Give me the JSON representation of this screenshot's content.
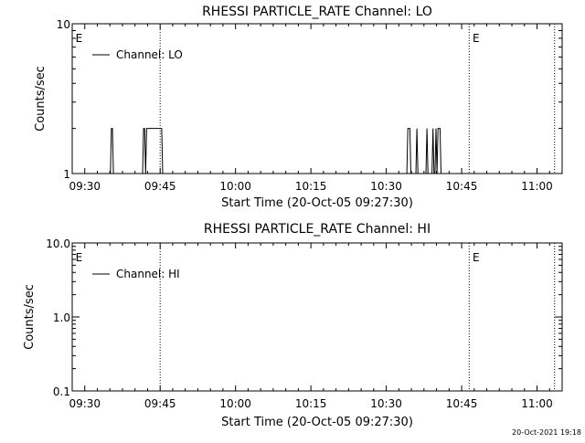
{
  "footer_timestamp": "20-Oct-2021 19:18",
  "chart_data": [
    {
      "type": "line",
      "title": "RHESSI PARTICLE_RATE Channel: LO",
      "xlabel": "Start Time (20-Oct-05 09:27:30)",
      "ylabel": "Counts/sec",
      "y_scale": "log",
      "ylim": [
        1,
        10
      ],
      "y_ticks": [
        "1",
        "10"
      ],
      "x_range_minutes": [
        0,
        97.5
      ],
      "x_tick_labels": [
        "09:30",
        "09:45",
        "10:00",
        "10:15",
        "10:30",
        "10:45",
        "11:00"
      ],
      "x_tick_minutes": [
        2.5,
        17.5,
        32.5,
        47.5,
        62.5,
        77.5,
        92.5
      ],
      "dotted_lines_minutes": [
        17.5,
        79.0,
        96.0
      ],
      "event_markers": [
        {
          "label": "E",
          "minute": 0.3
        },
        {
          "label": "E",
          "minute": 79.3
        }
      ],
      "grid": false,
      "legend_position": "top-left",
      "series": [
        {
          "name": "Channel: LO",
          "x": [
            0,
            7.6,
            7.8,
            8.0,
            8.2,
            14.0,
            14.2,
            14.4,
            14.6,
            14.8,
            15.6,
            15.8,
            17.8,
            18.0,
            66.6,
            66.8,
            67.2,
            67.4,
            67.6,
            68.4,
            68.6,
            68.8,
            70.4,
            70.6,
            70.8,
            71.6,
            71.8,
            72.0,
            72.2,
            72.4,
            72.6,
            72.8,
            73.2,
            73.4,
            73.6,
            97.5
          ],
          "y": [
            1,
            1,
            2,
            2,
            1,
            1,
            2,
            2,
            1,
            2,
            2,
            2,
            2,
            1,
            1,
            2,
            2,
            1,
            1,
            1,
            2,
            1,
            1,
            2,
            1,
            1,
            2,
            1,
            1,
            2,
            1,
            2,
            2,
            1,
            1,
            1
          ]
        }
      ]
    },
    {
      "type": "line",
      "title": "RHESSI PARTICLE_RATE Channel: HI",
      "xlabel": "Start Time (20-Oct-05 09:27:30)",
      "ylabel": "Counts/sec",
      "y_scale": "log",
      "ylim": [
        0.1,
        10
      ],
      "y_ticks": [
        "0.1",
        "1.0",
        "10.0"
      ],
      "x_range_minutes": [
        0,
        97.5
      ],
      "x_tick_labels": [
        "09:30",
        "09:45",
        "10:00",
        "10:15",
        "10:30",
        "10:45",
        "11:00"
      ],
      "x_tick_minutes": [
        2.5,
        17.5,
        32.5,
        47.5,
        62.5,
        77.5,
        92.5
      ],
      "dotted_lines_minutes": [
        17.5,
        79.0,
        96.0
      ],
      "event_markers": [
        {
          "label": "E",
          "minute": 0.3
        },
        {
          "label": "E",
          "minute": 79.3
        }
      ],
      "grid": false,
      "legend_position": "top-left",
      "series": [
        {
          "name": "Channel: HI",
          "x": [],
          "y": []
        }
      ]
    }
  ]
}
